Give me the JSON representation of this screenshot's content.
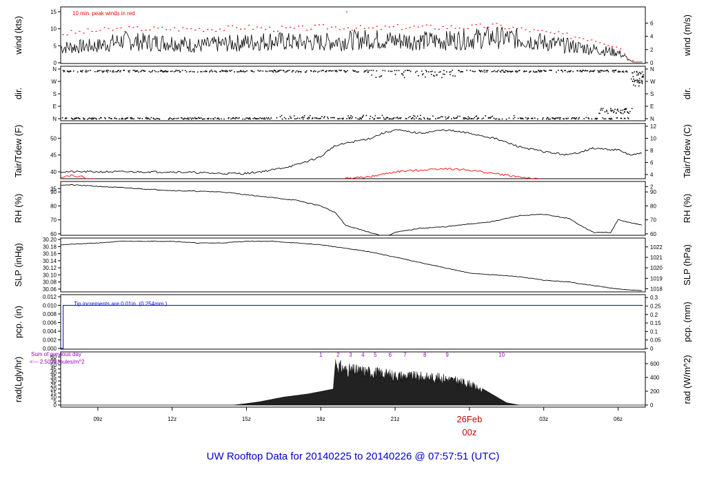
{
  "footer_title": "UW Rooftop Data for 20140225  to  20140226 @ 07:57:51  (UTC)",
  "colors": {
    "axis": "#000000",
    "peak": "#ff0000",
    "dew": "#ff0000",
    "precip": "#0000ff",
    "sun": "#9900cc",
    "footer": "#0000cc",
    "date": "#cc0000"
  },
  "time_axis": {
    "ticks": [
      "09z",
      "12z",
      "15z",
      "18z",
      "21z",
      "00z",
      "03z",
      "06z"
    ],
    "date_label": "26Feb",
    "date_sub": "00z"
  },
  "chart_data": [
    {
      "id": "wind",
      "type": "line",
      "ylabel_left": "wind (kts)",
      "ylabel_right": "wind (m/s)",
      "ylim_left": [
        0,
        15
      ],
      "ticks_left": [
        "0",
        "5",
        "10",
        "15"
      ],
      "ylim_right": [
        0,
        7.717
      ],
      "ticks_right": [
        "0",
        "2",
        "4",
        "6"
      ],
      "annotation": "10 min. peak winds in red",
      "series": [
        {
          "role": "wind",
          "x_hours": [
            7.5,
            9,
            10,
            11,
            12,
            13,
            14,
            15,
            16,
            17,
            18,
            19,
            20,
            21,
            22,
            23,
            24,
            25,
            26,
            27,
            28,
            29,
            30,
            30.6,
            31
          ],
          "values": [
            4.5,
            5,
            6.5,
            6,
            6,
            5,
            5.5,
            6,
            6.5,
            6,
            6,
            6.5,
            7,
            6.5,
            6.5,
            6.5,
            7,
            7.5,
            7,
            6,
            5,
            4,
            3,
            0.2,
            0.2
          ]
        },
        {
          "role": "peak",
          "x_hours": [
            7.5,
            9,
            10,
            11,
            12,
            13,
            14,
            15,
            16,
            17,
            18,
            19,
            20,
            21,
            22,
            23,
            24,
            25,
            26,
            27,
            28,
            29,
            30,
            30.6,
            31
          ],
          "values": [
            8.5,
            9.5,
            10,
            10,
            10,
            10,
            10,
            10.5,
            10,
            10,
            10.5,
            10.5,
            10,
            10.5,
            10.5,
            10.5,
            10.5,
            11,
            10,
            9,
            8,
            7,
            5,
            0.5,
            0.5
          ]
        }
      ]
    },
    {
      "id": "dir",
      "type": "scatter",
      "ylabel_left": "dir.",
      "ylabel_right": "dir.",
      "ticks_left": [
        "N",
        "E",
        "S",
        "W",
        "N"
      ],
      "ticks_right": [
        "N",
        "E",
        "S",
        "W",
        "N"
      ],
      "ylim": [
        0,
        360
      ]
    },
    {
      "id": "temp",
      "type": "line",
      "ylabel_left": "Tair/Tdew (F)",
      "ylabel_right": "Tair/Tdew (C)",
      "ylim_left": [
        33,
        54
      ],
      "ticks_left": [
        "35",
        "40",
        "45",
        "50"
      ],
      "ylim_right": [
        0.56,
        12.22
      ],
      "ticks_right": [
        "2",
        "4",
        "6",
        "8",
        "10",
        "12"
      ],
      "series": [
        {
          "role": "air",
          "x_hours": [
            7.5,
            9,
            12,
            14,
            15,
            16,
            17,
            18,
            18.5,
            19,
            20,
            20.5,
            21,
            22,
            23,
            24,
            25,
            26,
            27,
            28,
            29,
            30,
            30.5,
            31
          ],
          "values": [
            40,
            40,
            40,
            39.5,
            39.5,
            40.5,
            42,
            44.5,
            47.5,
            48.5,
            50,
            51.5,
            52.5,
            51.5,
            52.5,
            51.5,
            50,
            47.5,
            46,
            45,
            47,
            46.5,
            45,
            45.5
          ]
        },
        {
          "role": "dew",
          "x_hours": [
            7.5,
            8,
            9,
            12,
            15,
            17,
            18,
            19,
            20,
            21,
            22,
            23,
            24,
            25,
            26,
            27,
            28,
            29,
            30,
            31
          ],
          "values": [
            38.5,
            39,
            37.5,
            37,
            36,
            36.5,
            37,
            38,
            38.5,
            40,
            40.5,
            41,
            40.5,
            39.5,
            38.5,
            37.5,
            36,
            34.5,
            35,
            35
          ]
        }
      ]
    },
    {
      "id": "rh",
      "type": "line",
      "ylabel_left": "RH (%)",
      "ylabel_right": "RH (%)",
      "ylim": [
        56,
        96
      ],
      "ticks_left": [
        "60",
        "70",
        "80",
        "90"
      ],
      "ticks_right": [
        "60",
        "70",
        "80",
        "90"
      ],
      "series": [
        {
          "role": "rh",
          "x_hours": [
            7.5,
            8,
            10,
            12,
            14,
            15,
            16,
            17,
            18,
            18.6,
            19,
            20,
            20.6,
            21,
            22,
            23,
            24,
            25,
            26,
            27,
            28,
            29,
            29.7,
            30,
            31
          ],
          "values": [
            95,
            95,
            93,
            91,
            90,
            88,
            86,
            84,
            80,
            75,
            66,
            61,
            58,
            61,
            64,
            65,
            67,
            69,
            73,
            74,
            71,
            61,
            61,
            70,
            66
          ]
        }
      ]
    },
    {
      "id": "slp",
      "type": "line",
      "ylabel_left": "SLP (inHg)",
      "ylabel_right": "SLP (hPa)",
      "ylim_left": [
        30.054,
        30.202
      ],
      "ticks_left": [
        "30.06",
        "30.08",
        "30.10",
        "30.12",
        "30.14",
        "30.16",
        "30.18",
        "30.20"
      ],
      "ylim_right": [
        1017.77,
        1022.78
      ],
      "ticks_right": [
        "1018",
        "1019",
        "1020",
        "1021",
        "1022"
      ],
      "series": [
        {
          "role": "slp",
          "x_hours": [
            7.5,
            9,
            10,
            11,
            12,
            13,
            14,
            15,
            16,
            17,
            18,
            19,
            20,
            21,
            22,
            23,
            24,
            25,
            26,
            27,
            28,
            29,
            30,
            31
          ],
          "values": [
            30.185,
            30.19,
            30.195,
            30.195,
            30.195,
            30.19,
            30.19,
            30.195,
            30.195,
            30.19,
            30.185,
            30.175,
            30.165,
            30.15,
            30.135,
            30.12,
            30.105,
            30.1,
            30.095,
            30.085,
            30.08,
            30.07,
            30.06,
            30.055
          ]
        }
      ]
    },
    {
      "id": "pcp",
      "type": "line",
      "ylabel_left": "pcp. (in)",
      "ylabel_right": "pcp. (mm)",
      "ylim_left": [
        0,
        0.012
      ],
      "ticks_left": [
        "0.000",
        "0.002",
        "0.004",
        "0.006",
        "0.008",
        "0.010",
        "0.012"
      ],
      "ylim_right": [
        0,
        0.3048
      ],
      "ticks_right": [
        "0",
        "0.05",
        "0.1",
        "0.15",
        "0.2",
        "0.25",
        "0.3"
      ],
      "annotation": "Tip increments are 0.01in. (0.254mm.)",
      "series": [
        {
          "role": "pcp",
          "x_hours": [
            7.5,
            7.6,
            7.6,
            31
          ],
          "values": [
            0,
            0,
            0.01,
            0.01
          ]
        }
      ]
    },
    {
      "id": "rad",
      "type": "area",
      "ylabel_left": "rad(Lgly/hr)",
      "ylabel_right": "rad (W/m^2)",
      "ylim_left": [
        0,
        64.5
      ],
      "ticks_left": [
        "0",
        "5",
        "10",
        "15",
        "20",
        "25",
        "30",
        "35",
        "40",
        "45",
        "50",
        "55",
        "60"
      ],
      "ylim_right": [
        0,
        750
      ],
      "ticks_right": [
        "0",
        "200",
        "400",
        "600"
      ],
      "annotation_lines": [
        "Sum of previous day",
        "<--- 2.50 MJoules/m^2"
      ],
      "hour_labels": [
        "1",
        "2",
        "3",
        "4",
        "5",
        "6",
        "7",
        "8",
        "9",
        "10"
      ],
      "series": [
        {
          "role": "rad",
          "x_hours": [
            14.5,
            15.5,
            16.5,
            17.5,
            18,
            18.5,
            18.6,
            19,
            20,
            21,
            22,
            23,
            24,
            25,
            25.5,
            26
          ],
          "values": [
            0,
            4,
            10,
            14,
            17,
            20,
            57,
            50,
            47,
            42,
            40,
            38,
            30,
            12,
            3,
            0
          ]
        }
      ]
    }
  ]
}
